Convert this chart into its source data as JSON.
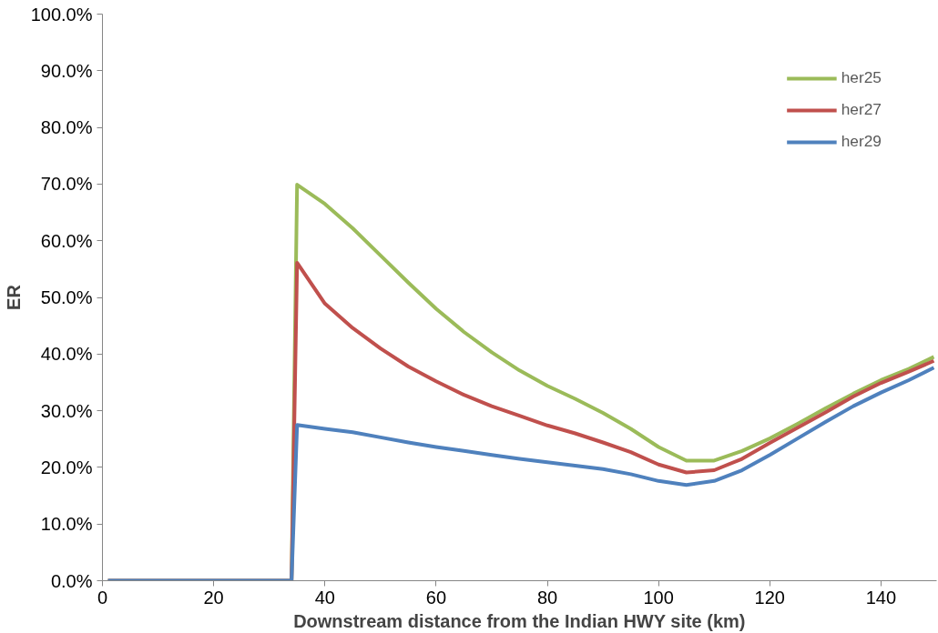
{
  "chart_data": {
    "type": "line",
    "xlabel": "Downstream distance from the Indian HWY site (km)",
    "ylabel": "ER",
    "x": [
      1,
      34,
      35,
      40,
      45,
      50,
      55,
      60,
      65,
      70,
      75,
      80,
      85,
      90,
      95,
      100,
      105,
      110,
      115,
      120,
      125,
      130,
      135,
      140,
      145,
      149.5
    ],
    "series": [
      {
        "name": "her25",
        "color": "#9bbb59",
        "values": [
          0,
          0,
          69.9,
          66.5,
          62.2,
          57.4,
          52.6,
          48.0,
          43.9,
          40.3,
          37.1,
          34.4,
          32.1,
          29.6,
          26.8,
          23.6,
          21.2,
          21.2,
          22.9,
          25.1,
          27.7,
          30.4,
          33.0,
          35.4,
          37.4,
          39.5
        ]
      },
      {
        "name": "her27",
        "color": "#c0504d",
        "values": [
          0,
          0,
          56.1,
          48.9,
          44.6,
          41.0,
          37.8,
          35.2,
          32.8,
          30.8,
          29.1,
          27.4,
          26.0,
          24.4,
          22.7,
          20.5,
          19.1,
          19.5,
          21.5,
          24.3,
          27.0,
          29.7,
          32.5,
          34.9,
          36.9,
          38.8
        ]
      },
      {
        "name": "her29",
        "color": "#4f81bd",
        "values": [
          0,
          0,
          27.5,
          26.8,
          26.2,
          25.3,
          24.4,
          23.6,
          22.9,
          22.2,
          21.5,
          20.9,
          20.3,
          19.7,
          18.8,
          17.6,
          16.9,
          17.6,
          19.5,
          22.2,
          25.1,
          28.0,
          30.8,
          33.2,
          35.4,
          37.6
        ]
      }
    ],
    "xlim": [
      0,
      150
    ],
    "xticks": [
      0,
      20,
      40,
      60,
      80,
      100,
      120,
      140
    ],
    "ylim": [
      0,
      100
    ],
    "yticks": [
      {
        "value": 0,
        "label": "0.0%"
      },
      {
        "value": 10,
        "label": "10.0%"
      },
      {
        "value": 20,
        "label": "20.0%"
      },
      {
        "value": 30,
        "label": "30.0%"
      },
      {
        "value": 40,
        "label": "40.0%"
      },
      {
        "value": 50,
        "label": "50.0%"
      },
      {
        "value": 60,
        "label": "60.0%"
      },
      {
        "value": 70,
        "label": "70.0%"
      },
      {
        "value": 80,
        "label": "80.0%"
      },
      {
        "value": 90,
        "label": "90.0%"
      },
      {
        "value": 100,
        "label": "100.0%"
      }
    ],
    "grid": false,
    "legend": "top right",
    "marker": "none",
    "line_style": "solid"
  }
}
